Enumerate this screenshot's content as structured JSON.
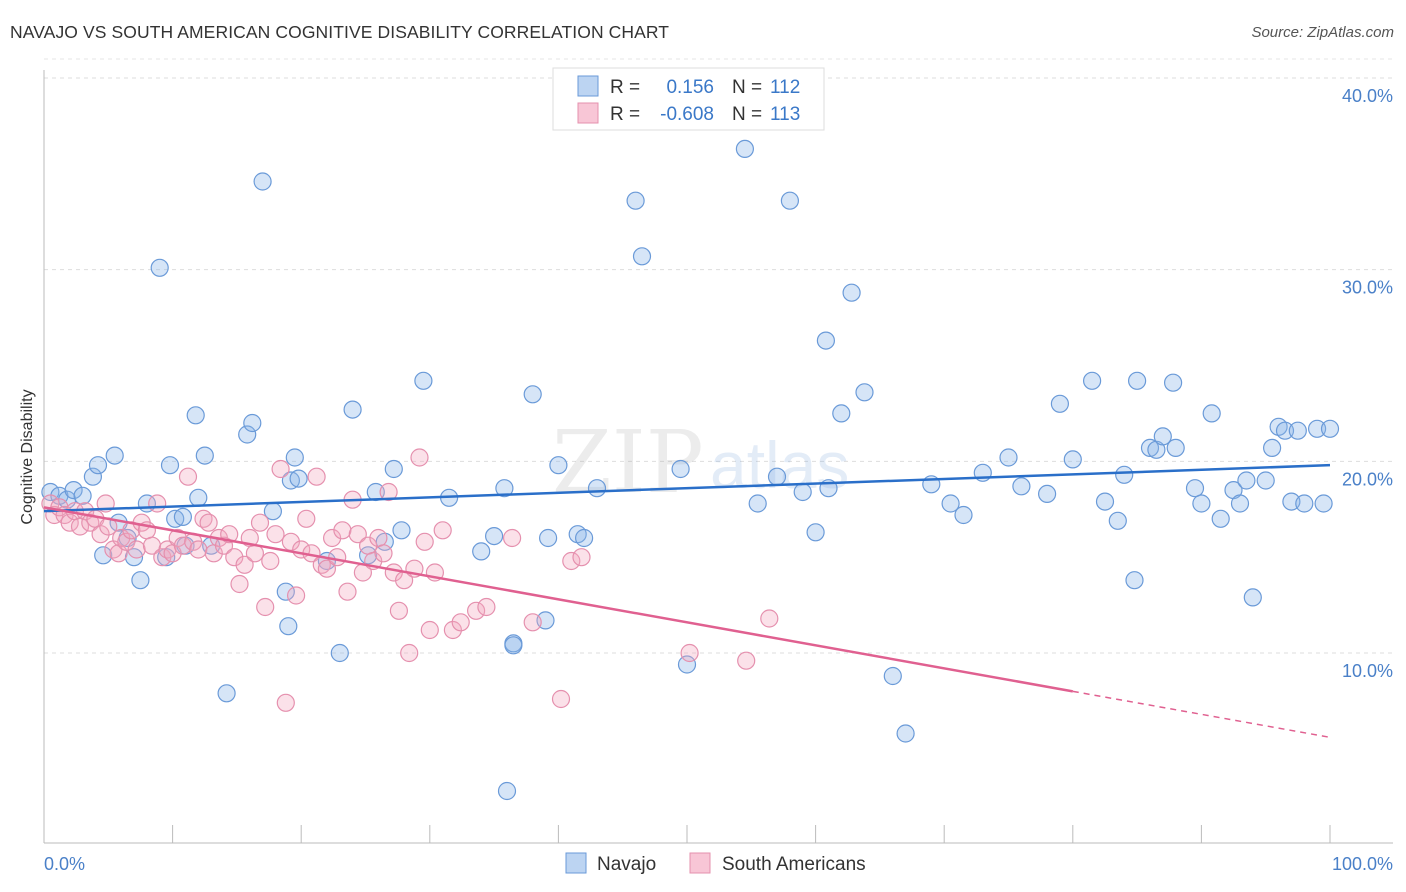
{
  "title": "NAVAJO VS SOUTH AMERICAN COGNITIVE DISABILITY CORRELATION CHART",
  "source": "Source: ZipAtlas.com",
  "watermark": {
    "zip": "ZIP",
    "atlas": "atlas"
  },
  "chart_data": {
    "type": "scatter",
    "ylabel": "Cognitive Disability",
    "xlabel": "",
    "xlim": [
      0,
      100
    ],
    "ylim": [
      0,
      41
    ],
    "x_tick_labels": {
      "left": "0.0%",
      "right": "100.0%"
    },
    "y_ticks": [
      {
        "value": 10,
        "label": "10.0%"
      },
      {
        "value": 20,
        "label": "20.0%"
      },
      {
        "value": 30,
        "label": "30.0%"
      },
      {
        "value": 40,
        "label": "40.0%"
      }
    ],
    "grid": true,
    "legend": {
      "position": "top-center",
      "rows": [
        {
          "r_label": "R =",
          "r_value": "0.156",
          "n_label": "N =",
          "n_value": "112"
        },
        {
          "r_label": "R =",
          "r_value": "-0.608",
          "n_label": "N =",
          "n_value": "113"
        }
      ]
    },
    "series": [
      {
        "name": "Navajo",
        "color": "#8ab4e8",
        "line_color": "#2a6fc9",
        "trend": {
          "x0": 0,
          "y0": 17.4,
          "x1": 100,
          "y1": 19.8,
          "dashed_from": null
        },
        "points": [
          [
            0.5,
            18.4
          ],
          [
            1.2,
            18.2
          ],
          [
            1.8,
            18.0
          ],
          [
            2.3,
            18.5
          ],
          [
            3.0,
            18.2
          ],
          [
            3.8,
            19.2
          ],
          [
            4.2,
            19.8
          ],
          [
            4.6,
            15.1
          ],
          [
            5.5,
            20.3
          ],
          [
            5.8,
            16.8
          ],
          [
            6.5,
            16.0
          ],
          [
            7.0,
            15.0
          ],
          [
            7.5,
            13.8
          ],
          [
            8.0,
            17.8
          ],
          [
            9.0,
            30.1
          ],
          [
            9.5,
            15.0
          ],
          [
            9.8,
            19.8
          ],
          [
            10.2,
            17.0
          ],
          [
            10.8,
            17.1
          ],
          [
            11.0,
            15.6
          ],
          [
            11.8,
            22.4
          ],
          [
            12.0,
            18.1
          ],
          [
            12.5,
            20.3
          ],
          [
            13.0,
            15.6
          ],
          [
            14.2,
            7.9
          ],
          [
            15.8,
            21.4
          ],
          [
            16.2,
            22.0
          ],
          [
            17.0,
            34.6
          ],
          [
            17.8,
            17.4
          ],
          [
            18.8,
            13.2
          ],
          [
            19.0,
            11.4
          ],
          [
            19.2,
            19.0
          ],
          [
            19.5,
            20.2
          ],
          [
            19.8,
            19.1
          ],
          [
            22.0,
            14.8
          ],
          [
            23.0,
            10.0
          ],
          [
            24.0,
            22.7
          ],
          [
            25.2,
            15.1
          ],
          [
            25.8,
            18.4
          ],
          [
            26.5,
            15.8
          ],
          [
            27.2,
            19.6
          ],
          [
            27.8,
            16.4
          ],
          [
            29.5,
            24.2
          ],
          [
            31.5,
            18.1
          ],
          [
            34.0,
            15.3
          ],
          [
            35.0,
            16.1
          ],
          [
            36.5,
            10.5
          ],
          [
            35.8,
            18.6
          ],
          [
            36.0,
            2.8
          ],
          [
            36.5,
            10.4
          ],
          [
            38.0,
            23.5
          ],
          [
            39.0,
            11.7
          ],
          [
            39.2,
            16.0
          ],
          [
            40.0,
            19.8
          ],
          [
            41.5,
            16.2
          ],
          [
            42.0,
            16.0
          ],
          [
            43.0,
            18.6
          ],
          [
            46.0,
            33.6
          ],
          [
            46.5,
            30.7
          ],
          [
            49.5,
            19.6
          ],
          [
            50.0,
            9.4
          ],
          [
            54.5,
            36.3
          ],
          [
            55.5,
            17.8
          ],
          [
            57.0,
            19.2
          ],
          [
            58.0,
            33.6
          ],
          [
            59.0,
            18.4
          ],
          [
            60.0,
            16.3
          ],
          [
            60.8,
            26.3
          ],
          [
            61.0,
            18.6
          ],
          [
            62.0,
            22.5
          ],
          [
            62.8,
            28.8
          ],
          [
            63.8,
            23.6
          ],
          [
            66.0,
            8.8
          ],
          [
            67.0,
            5.8
          ],
          [
            69.0,
            18.8
          ],
          [
            70.5,
            17.8
          ],
          [
            71.5,
            17.2
          ],
          [
            73.0,
            19.4
          ],
          [
            75.0,
            20.2
          ],
          [
            76.0,
            18.7
          ],
          [
            78.0,
            18.3
          ],
          [
            79.0,
            23.0
          ],
          [
            80.0,
            20.1
          ],
          [
            81.5,
            24.2
          ],
          [
            82.5,
            17.9
          ],
          [
            83.5,
            16.9
          ],
          [
            84.0,
            19.3
          ],
          [
            84.8,
            13.8
          ],
          [
            85.0,
            24.2
          ],
          [
            86.0,
            20.7
          ],
          [
            86.5,
            20.6
          ],
          [
            87.0,
            21.3
          ],
          [
            87.8,
            24.1
          ],
          [
            88.0,
            20.7
          ],
          [
            89.5,
            18.6
          ],
          [
            90.0,
            17.8
          ],
          [
            90.8,
            22.5
          ],
          [
            91.5,
            17.0
          ],
          [
            92.5,
            18.5
          ],
          [
            93.0,
            17.8
          ],
          [
            93.5,
            19.0
          ],
          [
            94.0,
            12.9
          ],
          [
            95.0,
            19.0
          ],
          [
            95.5,
            20.7
          ],
          [
            96.0,
            21.8
          ],
          [
            96.5,
            21.6
          ],
          [
            97.0,
            17.9
          ],
          [
            97.5,
            21.6
          ],
          [
            98.0,
            17.8
          ],
          [
            99.0,
            21.7
          ],
          [
            99.5,
            17.8
          ],
          [
            100.0,
            21.7
          ]
        ]
      },
      {
        "name": "South Americans",
        "color": "#f4a8c0",
        "line_color": "#e06090",
        "trend": {
          "x0": 0,
          "y0": 17.6,
          "x1": 100,
          "y1": 5.6,
          "dashed_from": 80
        },
        "points": [
          [
            0.5,
            17.8
          ],
          [
            0.8,
            17.2
          ],
          [
            1.2,
            17.6
          ],
          [
            1.6,
            17.2
          ],
          [
            2.0,
            16.8
          ],
          [
            2.4,
            17.4
          ],
          [
            2.8,
            16.6
          ],
          [
            3.2,
            17.4
          ],
          [
            3.6,
            16.8
          ],
          [
            4.0,
            17.0
          ],
          [
            4.4,
            16.2
          ],
          [
            4.8,
            17.8
          ],
          [
            5.0,
            16.6
          ],
          [
            5.4,
            15.4
          ],
          [
            5.8,
            15.2
          ],
          [
            6.0,
            16.0
          ],
          [
            6.4,
            15.8
          ],
          [
            6.8,
            16.4
          ],
          [
            7.2,
            15.4
          ],
          [
            7.6,
            16.8
          ],
          [
            8.0,
            16.4
          ],
          [
            8.4,
            15.6
          ],
          [
            8.8,
            17.8
          ],
          [
            9.2,
            15.0
          ],
          [
            9.6,
            15.4
          ],
          [
            10.0,
            15.2
          ],
          [
            10.4,
            16.0
          ],
          [
            10.8,
            15.6
          ],
          [
            11.2,
            19.2
          ],
          [
            11.6,
            15.8
          ],
          [
            12.0,
            15.4
          ],
          [
            12.4,
            17.0
          ],
          [
            12.8,
            16.8
          ],
          [
            13.2,
            15.2
          ],
          [
            13.6,
            16.0
          ],
          [
            14.0,
            15.6
          ],
          [
            14.4,
            16.2
          ],
          [
            14.8,
            15.0
          ],
          [
            15.2,
            13.6
          ],
          [
            15.6,
            14.6
          ],
          [
            16.0,
            16.0
          ],
          [
            16.4,
            15.2
          ],
          [
            16.8,
            16.8
          ],
          [
            17.2,
            12.4
          ],
          [
            17.6,
            14.8
          ],
          [
            18.0,
            16.2
          ],
          [
            18.4,
            19.6
          ],
          [
            18.8,
            7.4
          ],
          [
            19.2,
            15.8
          ],
          [
            19.6,
            13.0
          ],
          [
            20.0,
            15.4
          ],
          [
            20.4,
            17.0
          ],
          [
            20.8,
            15.2
          ],
          [
            21.2,
            19.2
          ],
          [
            21.6,
            14.6
          ],
          [
            22.0,
            14.4
          ],
          [
            22.4,
            16.0
          ],
          [
            22.8,
            15.0
          ],
          [
            23.2,
            16.4
          ],
          [
            23.6,
            13.2
          ],
          [
            24.0,
            18.0
          ],
          [
            24.4,
            16.2
          ],
          [
            24.8,
            14.2
          ],
          [
            25.2,
            15.6
          ],
          [
            25.6,
            14.8
          ],
          [
            26.0,
            16.0
          ],
          [
            26.4,
            15.2
          ],
          [
            26.8,
            18.4
          ],
          [
            27.2,
            14.2
          ],
          [
            27.6,
            12.2
          ],
          [
            28.0,
            13.8
          ],
          [
            28.4,
            10.0
          ],
          [
            28.8,
            14.4
          ],
          [
            29.2,
            20.2
          ],
          [
            29.6,
            15.8
          ],
          [
            30.0,
            11.2
          ],
          [
            30.4,
            14.2
          ],
          [
            31.0,
            16.4
          ],
          [
            31.8,
            11.2
          ],
          [
            32.4,
            11.6
          ],
          [
            33.6,
            12.2
          ],
          [
            34.4,
            12.4
          ],
          [
            36.4,
            16.0
          ],
          [
            38.0,
            11.6
          ],
          [
            40.2,
            7.6
          ],
          [
            41.0,
            14.8
          ],
          [
            41.8,
            15.0
          ],
          [
            50.2,
            10.0
          ],
          [
            54.6,
            9.6
          ],
          [
            56.4,
            11.8
          ]
        ]
      }
    ]
  }
}
